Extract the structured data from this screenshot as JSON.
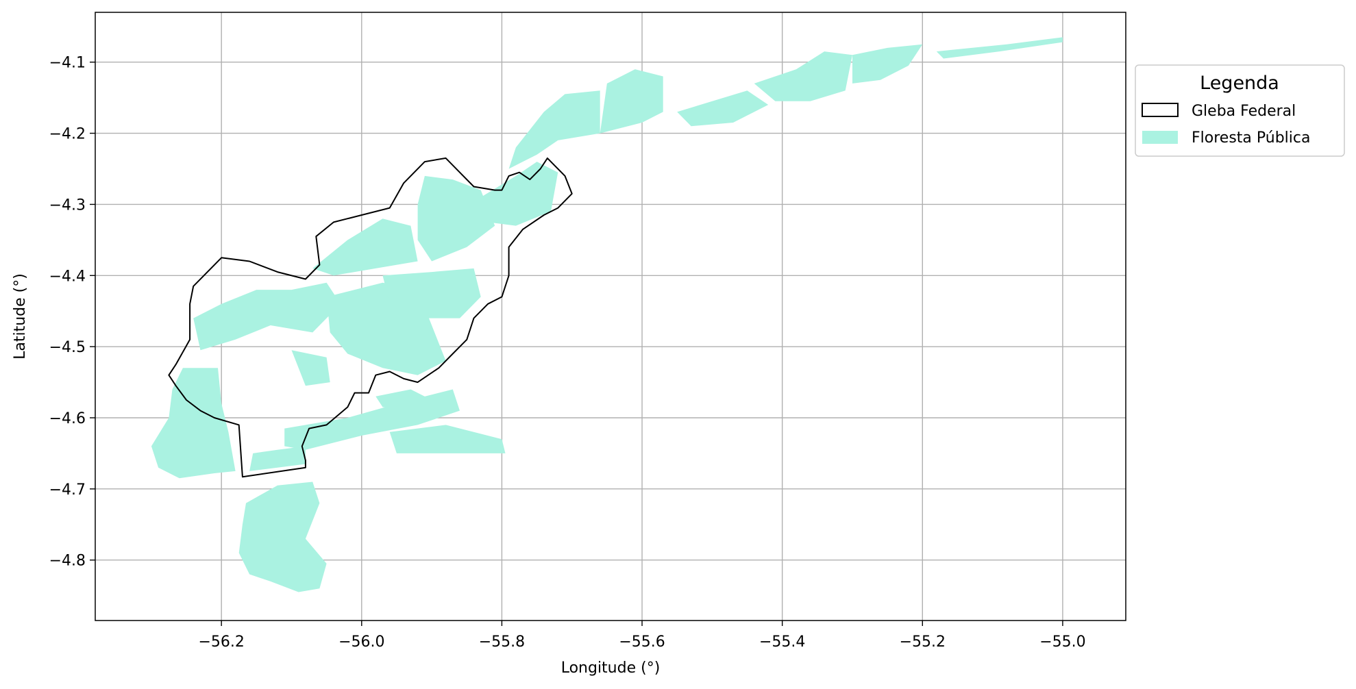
{
  "chart_data": {
    "type": "map",
    "xlabel": "Longitude (°)",
    "ylabel": "Latitude (°)",
    "xlim": [
      -56.38,
      -54.91
    ],
    "ylim": [
      -4.885,
      -4.03
    ],
    "grid": true,
    "x_ticks": [
      -56.2,
      -56.0,
      -55.8,
      -55.6,
      -55.4,
      -55.2,
      -55.0
    ],
    "y_ticks": [
      -4.1,
      -4.2,
      -4.3,
      -4.4,
      -4.5,
      -4.6,
      -4.7,
      -4.8
    ],
    "x_tick_labels": [
      "−56.2",
      "−56.0",
      "−55.8",
      "−55.6",
      "−55.4",
      "−55.2",
      "−55.0"
    ],
    "y_tick_labels": [
      "−4.1",
      "−4.2",
      "−4.3",
      "−4.4",
      "−4.5",
      "−4.6",
      "−4.7",
      "−4.8"
    ],
    "legend": {
      "title": "Legenda",
      "placement": "outside-right-top",
      "items": [
        {
          "label": "Gleba Federal",
          "style": "outline",
          "color": "#000000"
        },
        {
          "label": "Floresta Pública",
          "style": "fill",
          "color": "#aaf2e1"
        }
      ]
    },
    "layers": {
      "gleba_federal": [
        [
          [
            -56.24,
            -4.415
          ],
          [
            -56.2,
            -4.375
          ],
          [
            -56.16,
            -4.38
          ],
          [
            -56.12,
            -4.395
          ],
          [
            -56.08,
            -4.405
          ],
          [
            -56.06,
            -4.385
          ],
          [
            -56.065,
            -4.345
          ],
          [
            -56.04,
            -4.325
          ],
          [
            -56.0,
            -4.315
          ],
          [
            -55.96,
            -4.305
          ],
          [
            -55.94,
            -4.27
          ],
          [
            -55.91,
            -4.24
          ],
          [
            -55.88,
            -4.235
          ],
          [
            -55.86,
            -4.255
          ],
          [
            -55.84,
            -4.275
          ],
          [
            -55.81,
            -4.28
          ],
          [
            -55.8,
            -4.28
          ],
          [
            -55.79,
            -4.26
          ],
          [
            -55.775,
            -4.255
          ],
          [
            -55.76,
            -4.265
          ],
          [
            -55.745,
            -4.25
          ],
          [
            -55.735,
            -4.235
          ],
          [
            -55.725,
            -4.245
          ],
          [
            -55.71,
            -4.26
          ],
          [
            -55.7,
            -4.285
          ],
          [
            -55.72,
            -4.305
          ],
          [
            -55.74,
            -4.315
          ],
          [
            -55.77,
            -4.335
          ],
          [
            -55.79,
            -4.36
          ],
          [
            -55.79,
            -4.4
          ],
          [
            -55.8,
            -4.43
          ],
          [
            -55.82,
            -4.44
          ],
          [
            -55.84,
            -4.46
          ],
          [
            -55.85,
            -4.49
          ],
          [
            -55.87,
            -4.51
          ],
          [
            -55.89,
            -4.53
          ],
          [
            -55.92,
            -4.55
          ],
          [
            -55.94,
            -4.545
          ],
          [
            -55.96,
            -4.535
          ],
          [
            -55.98,
            -4.54
          ],
          [
            -55.99,
            -4.565
          ],
          [
            -56.01,
            -4.565
          ],
          [
            -56.02,
            -4.585
          ],
          [
            -56.05,
            -4.61
          ],
          [
            -56.075,
            -4.615
          ],
          [
            -56.085,
            -4.64
          ],
          [
            -56.08,
            -4.66
          ],
          [
            -56.08,
            -4.67
          ],
          [
            -56.17,
            -4.683
          ],
          [
            -56.175,
            -4.61
          ],
          [
            -56.21,
            -4.6
          ],
          [
            -56.23,
            -4.59
          ],
          [
            -56.25,
            -4.575
          ],
          [
            -56.265,
            -4.555
          ],
          [
            -56.275,
            -4.54
          ],
          [
            -56.265,
            -4.525
          ],
          [
            -56.245,
            -4.49
          ],
          [
            -56.245,
            -4.44
          ],
          [
            -56.24,
            -4.415
          ]
        ]
      ],
      "floresta_publica": [
        [
          [
            -56.255,
            -4.53
          ],
          [
            -56.205,
            -4.53
          ],
          [
            -56.2,
            -4.58
          ],
          [
            -56.19,
            -4.62
          ],
          [
            -56.18,
            -4.675
          ],
          [
            -56.21,
            -4.678
          ],
          [
            -56.26,
            -4.685
          ],
          [
            -56.29,
            -4.67
          ],
          [
            -56.3,
            -4.64
          ],
          [
            -56.275,
            -4.6
          ],
          [
            -56.27,
            -4.56
          ]
        ],
        [
          [
            -56.155,
            -4.65
          ],
          [
            -56.12,
            -4.645
          ],
          [
            -56.08,
            -4.64
          ],
          [
            -56.08,
            -4.665
          ],
          [
            -56.12,
            -4.67
          ],
          [
            -56.16,
            -4.675
          ]
        ],
        [
          [
            -56.11,
            -4.615
          ],
          [
            -56.02,
            -4.6
          ],
          [
            -55.93,
            -4.575
          ],
          [
            -55.87,
            -4.56
          ],
          [
            -55.86,
            -4.59
          ],
          [
            -55.92,
            -4.61
          ],
          [
            -56.0,
            -4.625
          ],
          [
            -56.08,
            -4.645
          ],
          [
            -56.11,
            -4.64
          ]
        ],
        [
          [
            -55.96,
            -4.62
          ],
          [
            -55.88,
            -4.61
          ],
          [
            -55.8,
            -4.63
          ],
          [
            -55.795,
            -4.65
          ],
          [
            -55.87,
            -4.65
          ],
          [
            -55.95,
            -4.65
          ]
        ],
        [
          [
            -56.165,
            -4.72
          ],
          [
            -56.12,
            -4.695
          ],
          [
            -56.07,
            -4.69
          ],
          [
            -56.06,
            -4.72
          ],
          [
            -56.08,
            -4.77
          ],
          [
            -56.05,
            -4.805
          ],
          [
            -56.06,
            -4.84
          ],
          [
            -56.09,
            -4.845
          ],
          [
            -56.13,
            -4.83
          ],
          [
            -56.16,
            -4.82
          ],
          [
            -56.175,
            -4.79
          ],
          [
            -56.17,
            -4.75
          ]
        ],
        [
          [
            -56.24,
            -4.46
          ],
          [
            -56.2,
            -4.44
          ],
          [
            -56.15,
            -4.42
          ],
          [
            -56.1,
            -4.42
          ],
          [
            -56.05,
            -4.41
          ],
          [
            -56.03,
            -4.44
          ],
          [
            -56.07,
            -4.48
          ],
          [
            -56.13,
            -4.47
          ],
          [
            -56.18,
            -4.49
          ],
          [
            -56.23,
            -4.505
          ]
        ],
        [
          [
            -56.05,
            -4.43
          ],
          [
            -55.97,
            -4.41
          ],
          [
            -55.92,
            -4.42
          ],
          [
            -55.9,
            -4.47
          ],
          [
            -55.88,
            -4.52
          ],
          [
            -55.92,
            -4.54
          ],
          [
            -55.97,
            -4.53
          ],
          [
            -56.02,
            -4.51
          ],
          [
            -56.045,
            -4.48
          ]
        ],
        [
          [
            -55.97,
            -4.4
          ],
          [
            -55.9,
            -4.395
          ],
          [
            -55.84,
            -4.39
          ],
          [
            -55.83,
            -4.43
          ],
          [
            -55.86,
            -4.46
          ],
          [
            -55.92,
            -4.46
          ],
          [
            -55.96,
            -4.44
          ]
        ],
        [
          [
            -56.07,
            -4.39
          ],
          [
            -56.02,
            -4.35
          ],
          [
            -55.97,
            -4.32
          ],
          [
            -55.93,
            -4.33
          ],
          [
            -55.92,
            -4.38
          ],
          [
            -55.98,
            -4.39
          ],
          [
            -56.04,
            -4.4
          ]
        ],
        [
          [
            -55.9,
            -4.38
          ],
          [
            -55.85,
            -4.36
          ],
          [
            -55.81,
            -4.33
          ],
          [
            -55.83,
            -4.28
          ],
          [
            -55.87,
            -4.265
          ],
          [
            -55.91,
            -4.26
          ],
          [
            -55.92,
            -4.3
          ],
          [
            -55.92,
            -4.35
          ]
        ],
        [
          [
            -55.83,
            -4.29
          ],
          [
            -55.78,
            -4.26
          ],
          [
            -55.75,
            -4.24
          ],
          [
            -55.72,
            -4.255
          ],
          [
            -55.73,
            -4.31
          ],
          [
            -55.78,
            -4.33
          ],
          [
            -55.82,
            -4.325
          ]
        ],
        [
          [
            -55.79,
            -4.25
          ],
          [
            -55.75,
            -4.23
          ],
          [
            -55.72,
            -4.21
          ],
          [
            -55.66,
            -4.2
          ],
          [
            -55.66,
            -4.14
          ],
          [
            -55.71,
            -4.145
          ],
          [
            -55.74,
            -4.17
          ],
          [
            -55.78,
            -4.22
          ]
        ],
        [
          [
            -55.66,
            -4.2
          ],
          [
            -55.6,
            -4.185
          ],
          [
            -55.57,
            -4.17
          ],
          [
            -55.57,
            -4.12
          ],
          [
            -55.61,
            -4.11
          ],
          [
            -55.65,
            -4.13
          ]
        ],
        [
          [
            -55.55,
            -4.17
          ],
          [
            -55.5,
            -4.155
          ],
          [
            -55.45,
            -4.14
          ],
          [
            -55.42,
            -4.16
          ],
          [
            -55.47,
            -4.185
          ],
          [
            -55.53,
            -4.19
          ]
        ],
        [
          [
            -55.44,
            -4.13
          ],
          [
            -55.38,
            -4.11
          ],
          [
            -55.34,
            -4.085
          ],
          [
            -55.3,
            -4.09
          ],
          [
            -55.31,
            -4.14
          ],
          [
            -55.36,
            -4.155
          ],
          [
            -55.41,
            -4.155
          ]
        ],
        [
          [
            -55.3,
            -4.09
          ],
          [
            -55.25,
            -4.08
          ],
          [
            -55.2,
            -4.075
          ],
          [
            -55.22,
            -4.105
          ],
          [
            -55.26,
            -4.125
          ],
          [
            -55.3,
            -4.13
          ]
        ],
        [
          [
            -55.18,
            -4.085
          ],
          [
            -55.08,
            -4.075
          ],
          [
            -55.0,
            -4.065
          ],
          [
            -55.0,
            -4.072
          ],
          [
            -55.09,
            -4.085
          ],
          [
            -55.17,
            -4.095
          ]
        ],
        [
          [
            -56.1,
            -4.505
          ],
          [
            -56.05,
            -4.515
          ],
          [
            -56.045,
            -4.55
          ],
          [
            -56.08,
            -4.555
          ]
        ],
        [
          [
            -55.98,
            -4.57
          ],
          [
            -55.93,
            -4.56
          ],
          [
            -55.9,
            -4.575
          ],
          [
            -55.93,
            -4.59
          ],
          [
            -55.97,
            -4.585
          ]
        ]
      ]
    }
  }
}
